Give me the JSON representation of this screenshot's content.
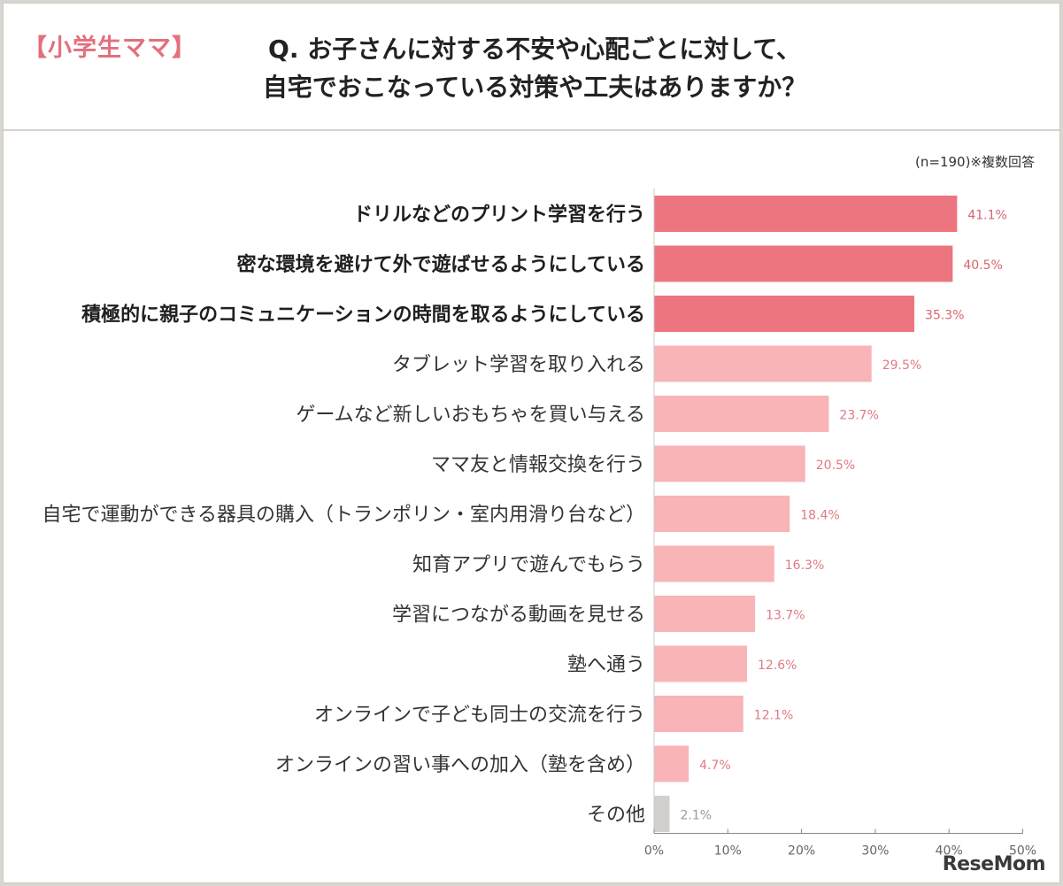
{
  "header": {
    "tag": "【小学生ママ】",
    "question_line1": "Q. お子さんに対する不安や心配ごとに対して、",
    "question_line2": "自宅でおこなっている対策や工夫はありますか？"
  },
  "note": "(n=190)※複数回答",
  "watermark": "ReseMom",
  "colors": {
    "highlight": "#ec7580",
    "normal": "#f8b4b7",
    "other": "#d3cfcd",
    "highlight_value": "#d9646f",
    "normal_value": "#e07a84",
    "other_value": "#999999"
  },
  "chart_data": {
    "type": "bar",
    "orientation": "horizontal",
    "xlim": [
      0,
      50
    ],
    "x_ticks": [
      "0%",
      "10%",
      "20%",
      "30%",
      "40%",
      "50%"
    ],
    "grid": false,
    "categories": [
      "ドリルなどのプリント学習を行う",
      "密な環境を避けて外で遊ばせるようにしている",
      "積極的に親子のコミュニケーションの時間を取るようにしている",
      "タブレット学習を取り入れる",
      "ゲームなど新しいおもちゃを買い与える",
      "ママ友と情報交換を行う",
      "自宅で運動ができる器具の購入（トランポリン・室内用滑り台など）",
      "知育アプリで遊んでもらう",
      "学習につながる動画を見せる",
      "塾へ通う",
      "オンラインで子ども同士の交流を行う",
      "オンラインの習い事への加入（塾を含め）",
      "その他"
    ],
    "values": [
      41.1,
      40.5,
      35.3,
      29.5,
      23.7,
      20.5,
      18.4,
      16.3,
      13.7,
      12.6,
      12.1,
      4.7,
      2.1
    ],
    "value_labels": [
      "41.1%",
      "40.5%",
      "35.3%",
      "29.5%",
      "23.7%",
      "20.5%",
      "18.4%",
      "16.3%",
      "13.7%",
      "12.6%",
      "12.1%",
      "4.7%",
      "2.1%"
    ],
    "highlight": [
      true,
      true,
      true,
      false,
      false,
      false,
      false,
      false,
      false,
      false,
      false,
      false,
      false
    ],
    "is_other": [
      false,
      false,
      false,
      false,
      false,
      false,
      false,
      false,
      false,
      false,
      false,
      false,
      true
    ]
  }
}
